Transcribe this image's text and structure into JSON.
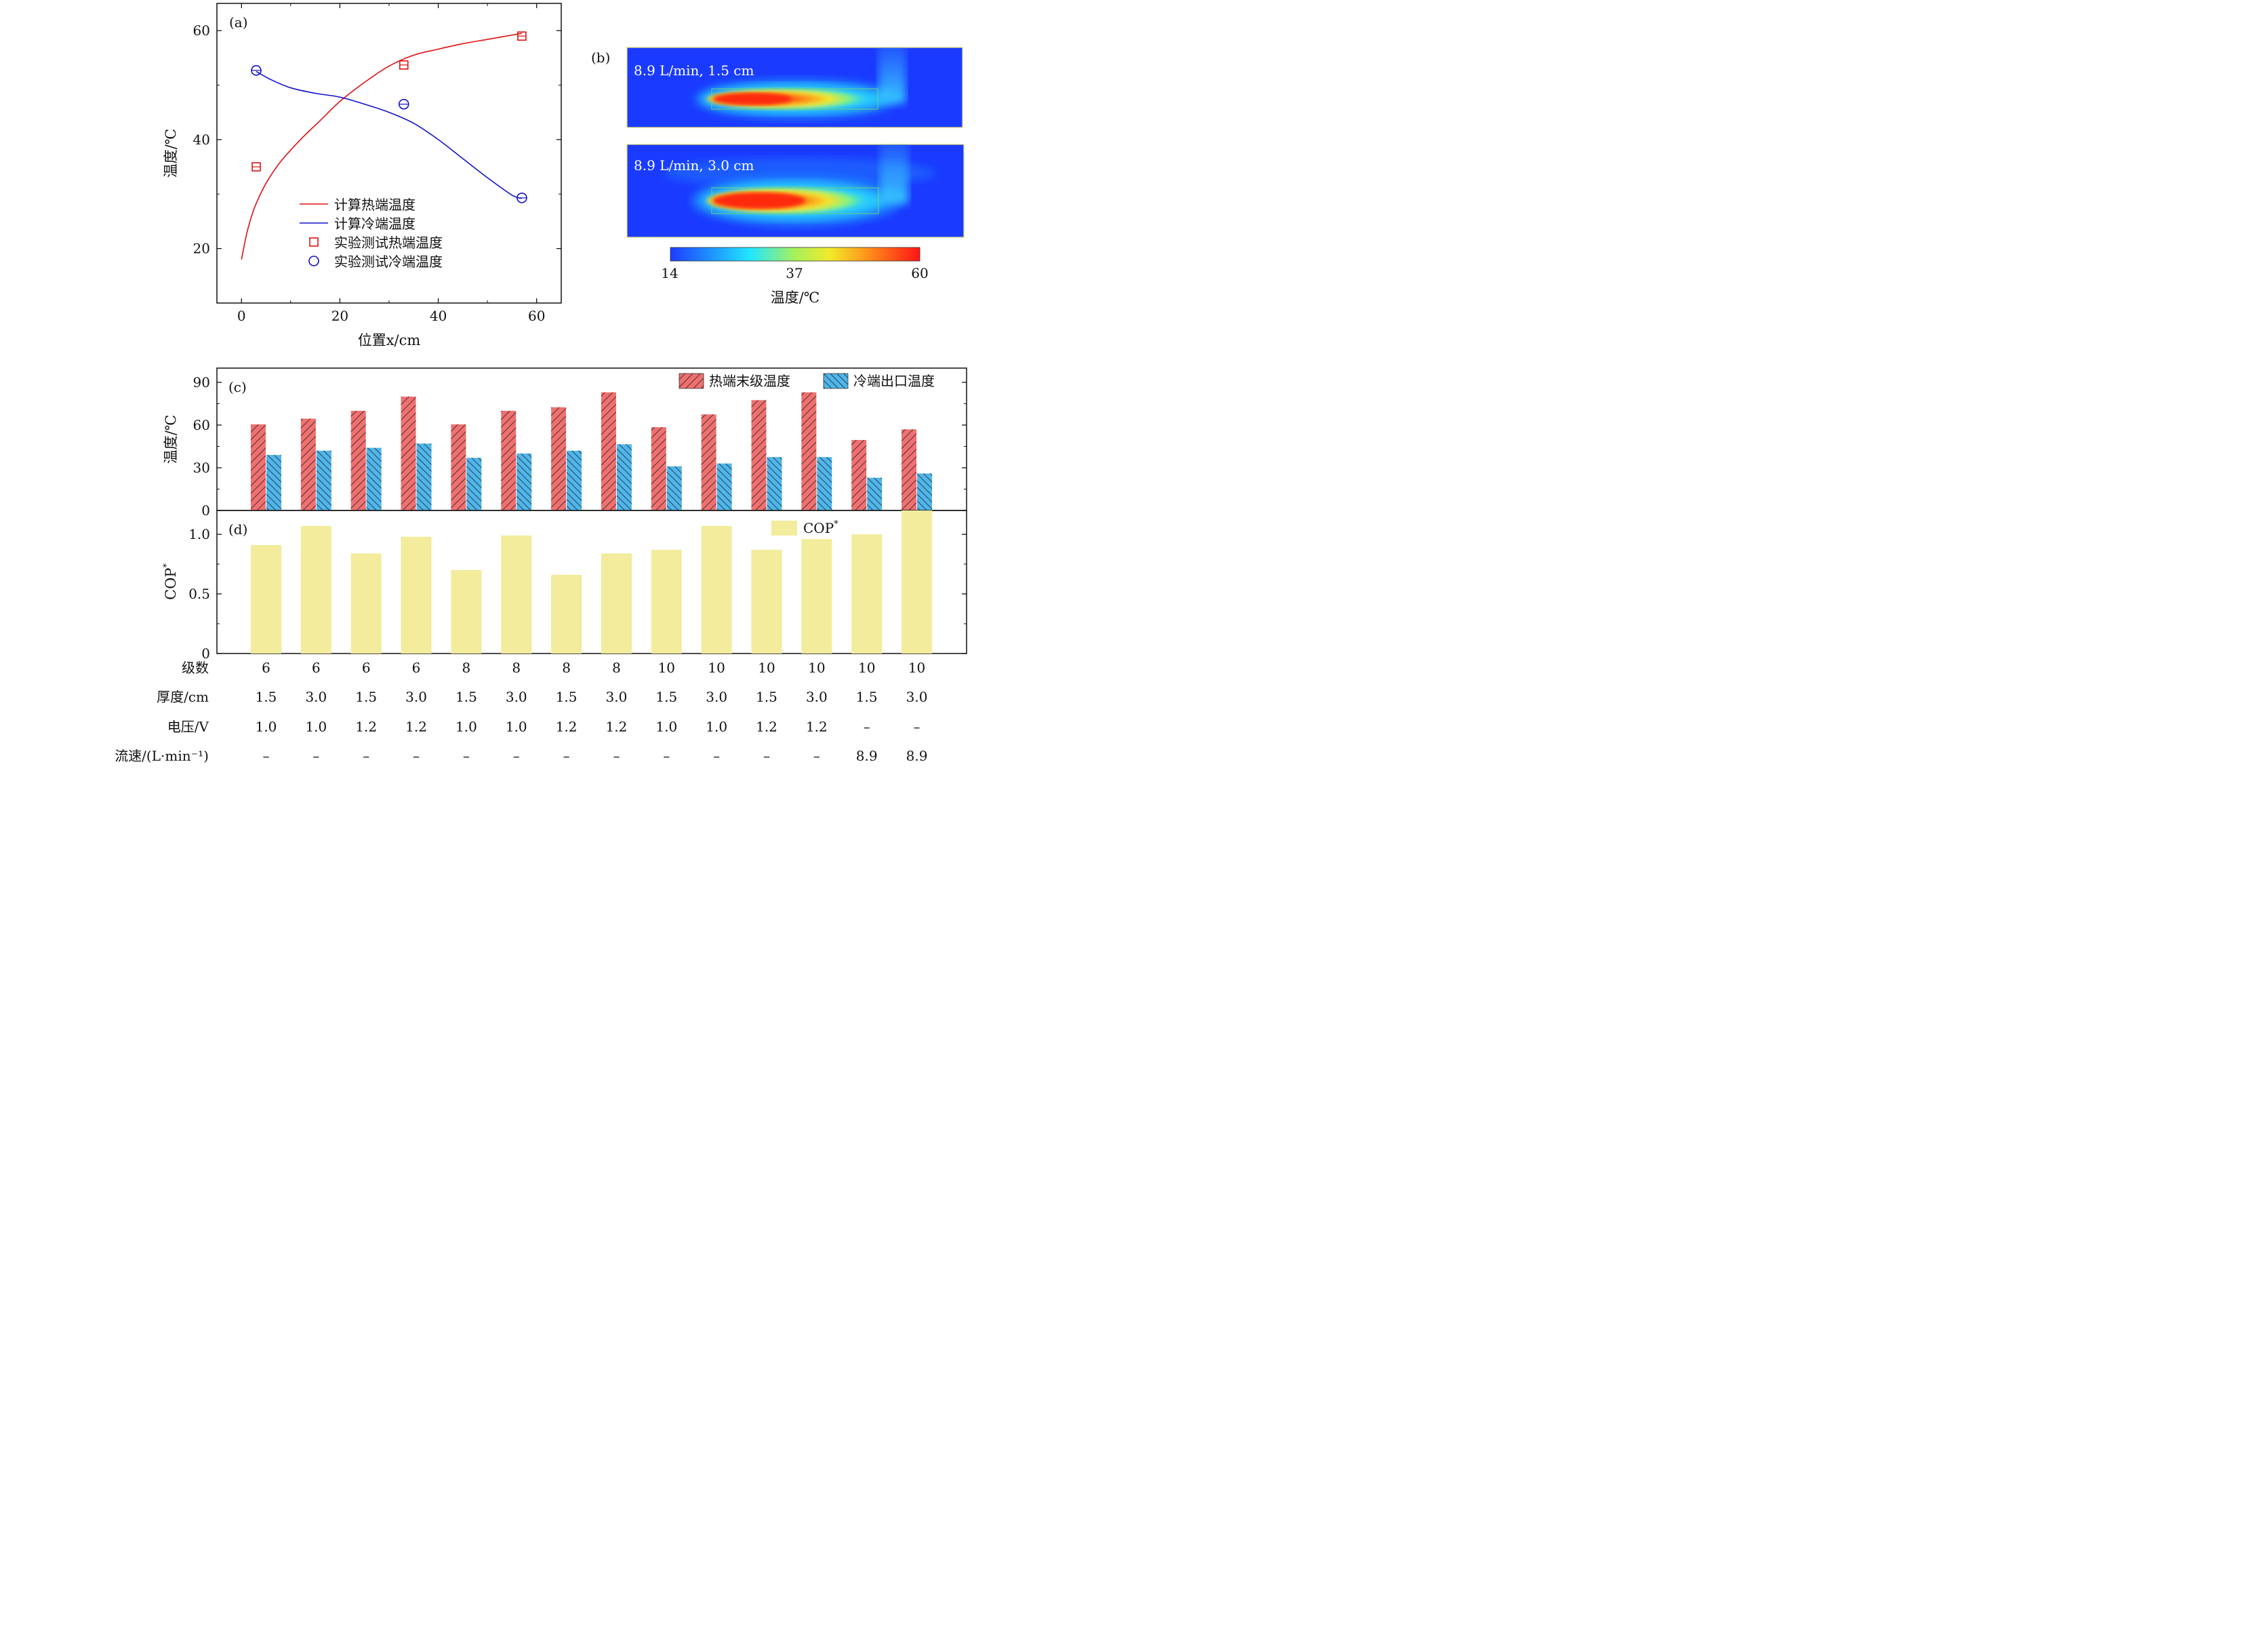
{
  "colors": {
    "hot_line": "#dd1111",
    "cold_line": "#1111cc",
    "hot_bar": "#f07070",
    "cold_bar": "#4fb6ec",
    "cop_bar": "#f2ec9c",
    "map_bg": "#1a3bff"
  },
  "chart_data": [
    {
      "panel": "(a)",
      "type": "line",
      "xlabel": "位置x/cm",
      "ylabel": "温度/℃",
      "xlim": [
        -5,
        65
      ],
      "ylim": [
        10,
        65
      ],
      "xticks": [
        0,
        20,
        40,
        60
      ],
      "yticks": [
        20,
        40,
        60
      ],
      "legend_position": "center-bottom",
      "series": [
        {
          "name": "计算热端温度",
          "kind": "line",
          "color": "#dd1111",
          "x": [
            0,
            1,
            2,
            3,
            5,
            8,
            12,
            16,
            20,
            25,
            30,
            35,
            40,
            45,
            50,
            57
          ],
          "y": [
            18,
            22.5,
            25.8,
            28.3,
            32,
            36,
            40,
            43.5,
            47,
            50.5,
            53.5,
            55.5,
            56.6,
            57.6,
            58.4,
            59.5
          ]
        },
        {
          "name": "计算冷端温度",
          "kind": "line",
          "color": "#1111cc",
          "x": [
            3,
            6,
            10,
            15,
            20,
            25,
            30,
            35,
            40,
            45,
            50,
            55,
            57
          ],
          "y": [
            52.5,
            51,
            49.5,
            48.5,
            47.8,
            46.5,
            45,
            43,
            40,
            36.5,
            33,
            29.8,
            29.2
          ]
        },
        {
          "name": "实验测试热端温度",
          "kind": "marker",
          "marker": "square",
          "color": "#dd1111",
          "x": [
            3,
            33,
            57
          ],
          "y": [
            35,
            53.7,
            59
          ]
        },
        {
          "name": "实验测试冷端温度",
          "kind": "marker",
          "marker": "circle",
          "color": "#1111cc",
          "x": [
            3,
            33,
            57
          ],
          "y": [
            52.7,
            46.5,
            29.3
          ]
        }
      ]
    },
    {
      "panel": "(b)",
      "type": "heatmap",
      "maps": [
        {
          "label": "8.9 L/min, 1.5 cm"
        },
        {
          "label": "8.9 L/min, 3.0 cm"
        }
      ],
      "colorbar": {
        "ticks": [
          "14",
          "37",
          "60"
        ],
        "label": "温度/℃"
      }
    },
    {
      "panel": "(c)",
      "type": "bar",
      "ylabel": "温度/℃",
      "ylim": [
        0,
        100
      ],
      "yticks": [
        0,
        30,
        60,
        90
      ],
      "legend_position": "top-right",
      "series": [
        {
          "name": "热端末级温度",
          "color": "#f07070",
          "values": [
            60.5,
            64.5,
            70,
            80,
            60.5,
            70,
            72.5,
            83,
            58.5,
            67.5,
            77.5,
            83,
            49.5,
            57
          ]
        },
        {
          "name": "冷端出口温度",
          "color": "#4fb6ec",
          "values": [
            39,
            42,
            44,
            47,
            37,
            40,
            42,
            46.5,
            31,
            33,
            37.5,
            37.5,
            23,
            26
          ]
        }
      ]
    },
    {
      "panel": "(d)",
      "type": "bar",
      "ylabel": "COP*",
      "ylim": [
        0,
        1.2
      ],
      "yticks": [
        "0",
        "0.5",
        "1.0"
      ],
      "legend_position": "top-right",
      "series": [
        {
          "name": "COP*",
          "color": "#f2ec9c",
          "values": [
            0.91,
            1.07,
            0.84,
            0.98,
            0.7,
            0.99,
            0.66,
            0.84,
            0.87,
            1.07,
            0.87,
            0.96,
            1.0,
            1.2
          ]
        }
      ]
    }
  ],
  "table": {
    "rows": [
      {
        "label": "级数",
        "values": [
          "6",
          "6",
          "6",
          "6",
          "8",
          "8",
          "8",
          "8",
          "10",
          "10",
          "10",
          "10",
          "10",
          "10"
        ]
      },
      {
        "label": "厚度/cm",
        "values": [
          "1.5",
          "3.0",
          "1.5",
          "3.0",
          "1.5",
          "3.0",
          "1.5",
          "3.0",
          "1.5",
          "3.0",
          "1.5",
          "3.0",
          "1.5",
          "3.0"
        ]
      },
      {
        "label": "电压/V",
        "values": [
          "1.0",
          "1.0",
          "1.2",
          "1.2",
          "1.0",
          "1.0",
          "1.2",
          "1.2",
          "1.0",
          "1.0",
          "1.2",
          "1.2",
          "–",
          "–"
        ]
      },
      {
        "label": "流速/(L·min⁻¹)",
        "values": [
          "–",
          "–",
          "–",
          "–",
          "–",
          "–",
          "–",
          "–",
          "–",
          "–",
          "–",
          "–",
          "8.9",
          "8.9"
        ]
      }
    ]
  }
}
